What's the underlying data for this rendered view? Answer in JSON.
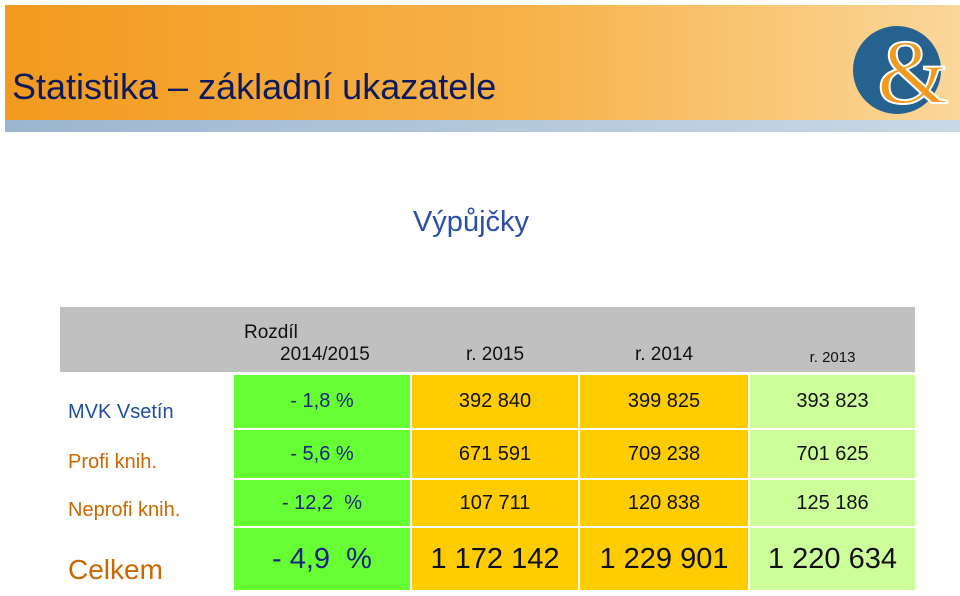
{
  "header": {
    "title": "Statistika – základní ukazatele",
    "logo": "&"
  },
  "section_title": "Výpůjčky",
  "table": {
    "columns": [
      [
        "Rozdíl",
        "2014/2015"
      ],
      [
        "r. 2015"
      ],
      [
        "r. 2014"
      ],
      [
        "r. 2013"
      ]
    ],
    "rows": [
      {
        "label": "MVK Vsetín",
        "cells": [
          "- 1,8 %",
          "392 840",
          "399 825",
          "393 823"
        ]
      },
      {
        "label": "Profi knih.",
        "cells": [
          "- 5,6 %",
          "671 591",
          "709 238",
          "701 625"
        ]
      },
      {
        "label": "Neprofi knih.",
        "cells": [
          "- 12,2  %",
          "107 711",
          "120 838",
          "125 186"
        ]
      },
      {
        "label": "Celkem",
        "cells": [
          "- 4,9  %",
          "1 172 142",
          "1 229 901",
          "1 220 634"
        ]
      }
    ]
  }
}
